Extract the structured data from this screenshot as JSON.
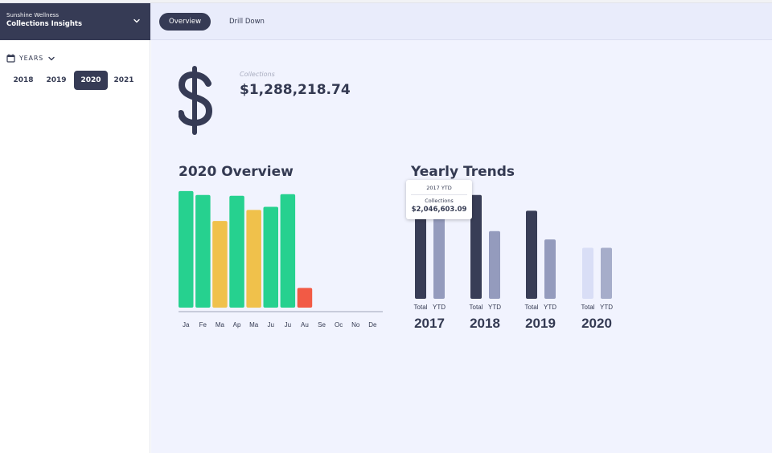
{
  "org": {
    "name": "Sunshine Wellness",
    "app": "Collections Insights"
  },
  "sidebar": {
    "years_label": "YEARS",
    "years": [
      "2018",
      "2019",
      "2020",
      "2021"
    ],
    "selected_year": "2020"
  },
  "tabs": [
    {
      "label": "Overview",
      "active": true
    },
    {
      "label": "Drill Down",
      "active": false
    }
  ],
  "kpi": {
    "label": "Collections",
    "value": "$1,288,218.74"
  },
  "overview": {
    "title": "2020 Overview"
  },
  "trends": {
    "title": "Yearly Trends"
  },
  "tooltip": {
    "title": "2017 YTD",
    "label": "Collections",
    "value": "$2,046,603.09"
  },
  "colors": {
    "sidebar_dark": "#363b55",
    "good": "#26d18f",
    "warning": "#f0c14b",
    "bad": "#f25a45",
    "total_bar": "#383d56",
    "ytd_bar": "#949bbd",
    "projected_bar": "#d9def6"
  },
  "chart_data": [
    {
      "type": "bar",
      "title": "2020 Overview",
      "categories": [
        "Ja",
        "Fe",
        "Ma",
        "Ap",
        "Ma",
        "Ju",
        "Ju",
        "Au",
        "Se",
        "Oc",
        "No",
        "De"
      ],
      "values": [
        148,
        143,
        110,
        142,
        124,
        128,
        144,
        25,
        null,
        null,
        null,
        null
      ],
      "status": [
        "good",
        "good",
        "warning",
        "good",
        "warning",
        "good",
        "good",
        "bad",
        null,
        null,
        null,
        null
      ],
      "ylim": [
        0,
        155
      ]
    },
    {
      "type": "bar",
      "title": "Yearly Trends",
      "categories": [
        "2017",
        "2018",
        "2019",
        "2020"
      ],
      "bar_labels": [
        "Total",
        "YTD"
      ],
      "series": [
        {
          "name": "Total",
          "values": [
            118,
            112,
            95,
            55
          ]
        },
        {
          "name": "YTD",
          "values": [
            88,
            73,
            64,
            55
          ]
        }
      ],
      "ylim": [
        0,
        130
      ]
    }
  ]
}
